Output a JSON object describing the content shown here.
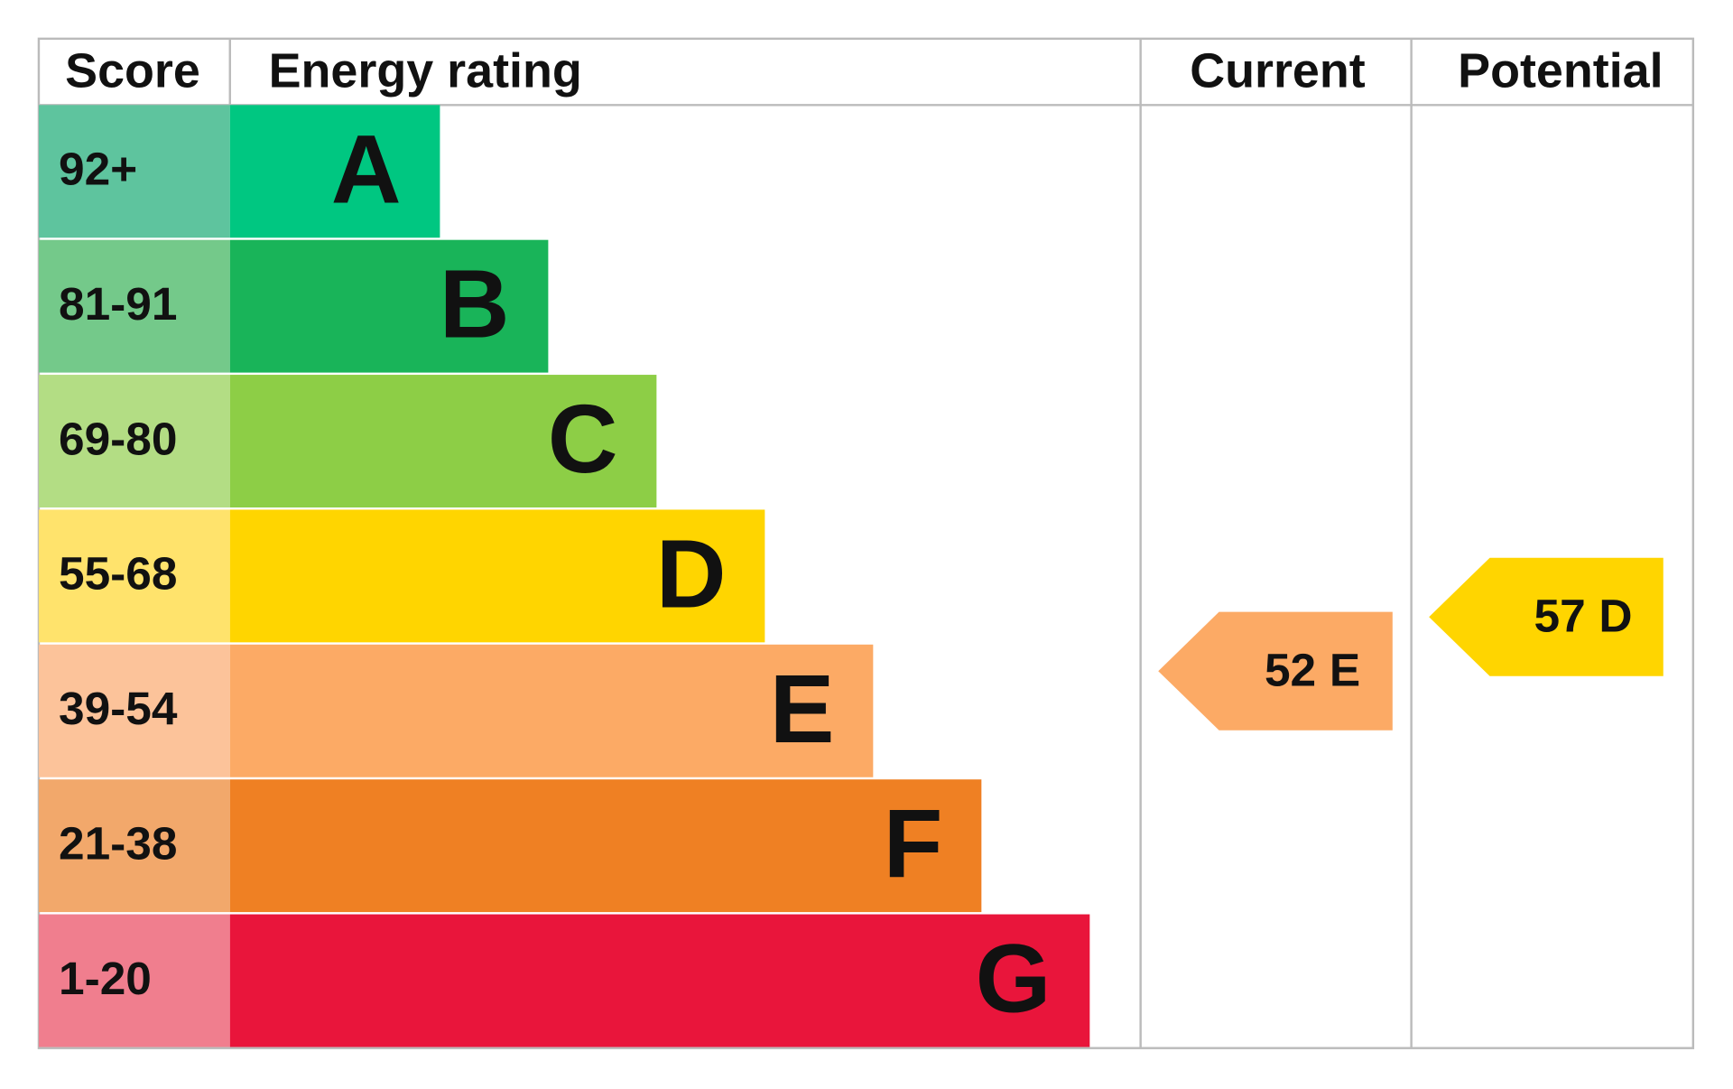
{
  "header": {
    "score": "Score",
    "rating": "Energy rating",
    "current": "Current",
    "potential": "Potential"
  },
  "bands": [
    {
      "range": "92+",
      "letter": "A",
      "score_color": "#5ec49e",
      "color": "#00c781"
    },
    {
      "range": "81-91",
      "letter": "B",
      "score_color": "#74c98a",
      "color": "#19b459"
    },
    {
      "range": "69-80",
      "letter": "C",
      "score_color": "#b3dd84",
      "color": "#8dce46"
    },
    {
      "range": "55-68",
      "letter": "D",
      "score_color": "#ffe36c",
      "color": "#ffd500"
    },
    {
      "range": "39-54",
      "letter": "E",
      "score_color": "#fcc39a",
      "color": "#fcaa65"
    },
    {
      "range": "21-38",
      "letter": "F",
      "score_color": "#f2a86b",
      "color": "#ef8023"
    },
    {
      "range": "1-20",
      "letter": "G",
      "score_color": "#f07e8e",
      "color": "#e9153b"
    }
  ],
  "current": {
    "score": 52,
    "rating": "E"
  },
  "potential": {
    "score": 57,
    "rating": "D"
  }
}
